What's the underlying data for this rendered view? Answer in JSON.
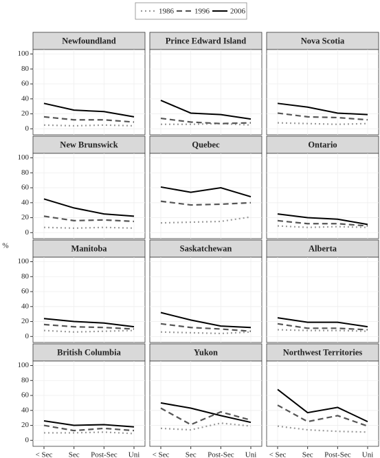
{
  "chart_data": {
    "type": "line",
    "ylabel": "%",
    "categories": [
      "< Sec",
      "Sec",
      "Post-Sec",
      "Uni"
    ],
    "ylim": [
      -8,
      106
    ],
    "yticks": [
      0,
      20,
      40,
      60,
      80,
      100
    ],
    "grid": true,
    "legend": "top",
    "series": [
      {
        "name": "1986",
        "color": "#999999",
        "dash": "dotted"
      },
      {
        "name": "1996",
        "color": "#555555",
        "dash": "dashed"
      },
      {
        "name": "2006",
        "color": "#000000",
        "dash": "solid"
      }
    ],
    "panels": [
      {
        "title": "Newfoundland",
        "series": [
          {
            "values": [
              5,
              4,
              5,
              4
            ]
          },
          {
            "values": [
              16,
              12,
              12,
              9
            ]
          },
          {
            "values": [
              34,
              25,
              23,
              16
            ]
          }
        ]
      },
      {
        "title": "Prince Edward Island",
        "series": [
          {
            "values": [
              6,
              6,
              7,
              5
            ]
          },
          {
            "values": [
              14,
              9,
              7,
              8
            ]
          },
          {
            "values": [
              38,
              21,
              19,
              13
            ]
          }
        ]
      },
      {
        "title": "Nova Scotia",
        "series": [
          {
            "values": [
              8,
              7,
              6,
              7
            ]
          },
          {
            "values": [
              21,
              16,
              15,
              12
            ]
          },
          {
            "values": [
              34,
              29,
              21,
              19
            ]
          }
        ]
      },
      {
        "title": "New Brunswick",
        "series": [
          {
            "values": [
              7,
              6,
              7,
              6
            ]
          },
          {
            "values": [
              22,
              16,
              17,
              15
            ]
          },
          {
            "values": [
              45,
              33,
              25,
              22
            ]
          }
        ]
      },
      {
        "title": "Quebec",
        "series": [
          {
            "values": [
              13,
              14,
              15,
              21
            ]
          },
          {
            "values": [
              42,
              37,
              38,
              40
            ]
          },
          {
            "values": [
              61,
              54,
              60,
              48
            ]
          }
        ]
      },
      {
        "title": "Ontario",
        "series": [
          {
            "values": [
              9,
              7,
              8,
              7
            ]
          },
          {
            "values": [
              16,
              12,
              12,
              9
            ]
          },
          {
            "values": [
              25,
              20,
              18,
              11
            ]
          }
        ]
      },
      {
        "title": "Manitoba",
        "series": [
          {
            "values": [
              8,
              6,
              7,
              8
            ]
          },
          {
            "values": [
              16,
              13,
              12,
              10
            ]
          },
          {
            "values": [
              24,
              20,
              18,
              13
            ]
          }
        ]
      },
      {
        "title": "Saskatchewan",
        "series": [
          {
            "values": [
              6,
              5,
              4,
              6
            ]
          },
          {
            "values": [
              17,
              12,
              10,
              7
            ]
          },
          {
            "values": [
              32,
              22,
              14,
              12
            ]
          }
        ]
      },
      {
        "title": "Alberta",
        "series": [
          {
            "values": [
              9,
              8,
              8,
              7
            ]
          },
          {
            "values": [
              17,
              11,
              11,
              9
            ]
          },
          {
            "values": [
              25,
              19,
              19,
              13
            ]
          }
        ]
      },
      {
        "title": "British Columbia",
        "series": [
          {
            "values": [
              10,
              10,
              11,
              9
            ]
          },
          {
            "values": [
              20,
              13,
              16,
              13
            ]
          },
          {
            "values": [
              26,
              20,
              21,
              18
            ]
          }
        ]
      },
      {
        "title": "Yukon",
        "series": [
          {
            "values": [
              16,
              14,
              23,
              19
            ]
          },
          {
            "values": [
              43,
              21,
              38,
              27
            ]
          },
          {
            "values": [
              50,
              43,
              33,
              24
            ]
          }
        ]
      },
      {
        "title": "Northwest Territories",
        "series": [
          {
            "values": [
              19,
              14,
              12,
              11
            ]
          },
          {
            "values": [
              47,
              25,
              33,
              19
            ]
          },
          {
            "values": [
              68,
              37,
              44,
              25
            ]
          }
        ]
      }
    ]
  }
}
